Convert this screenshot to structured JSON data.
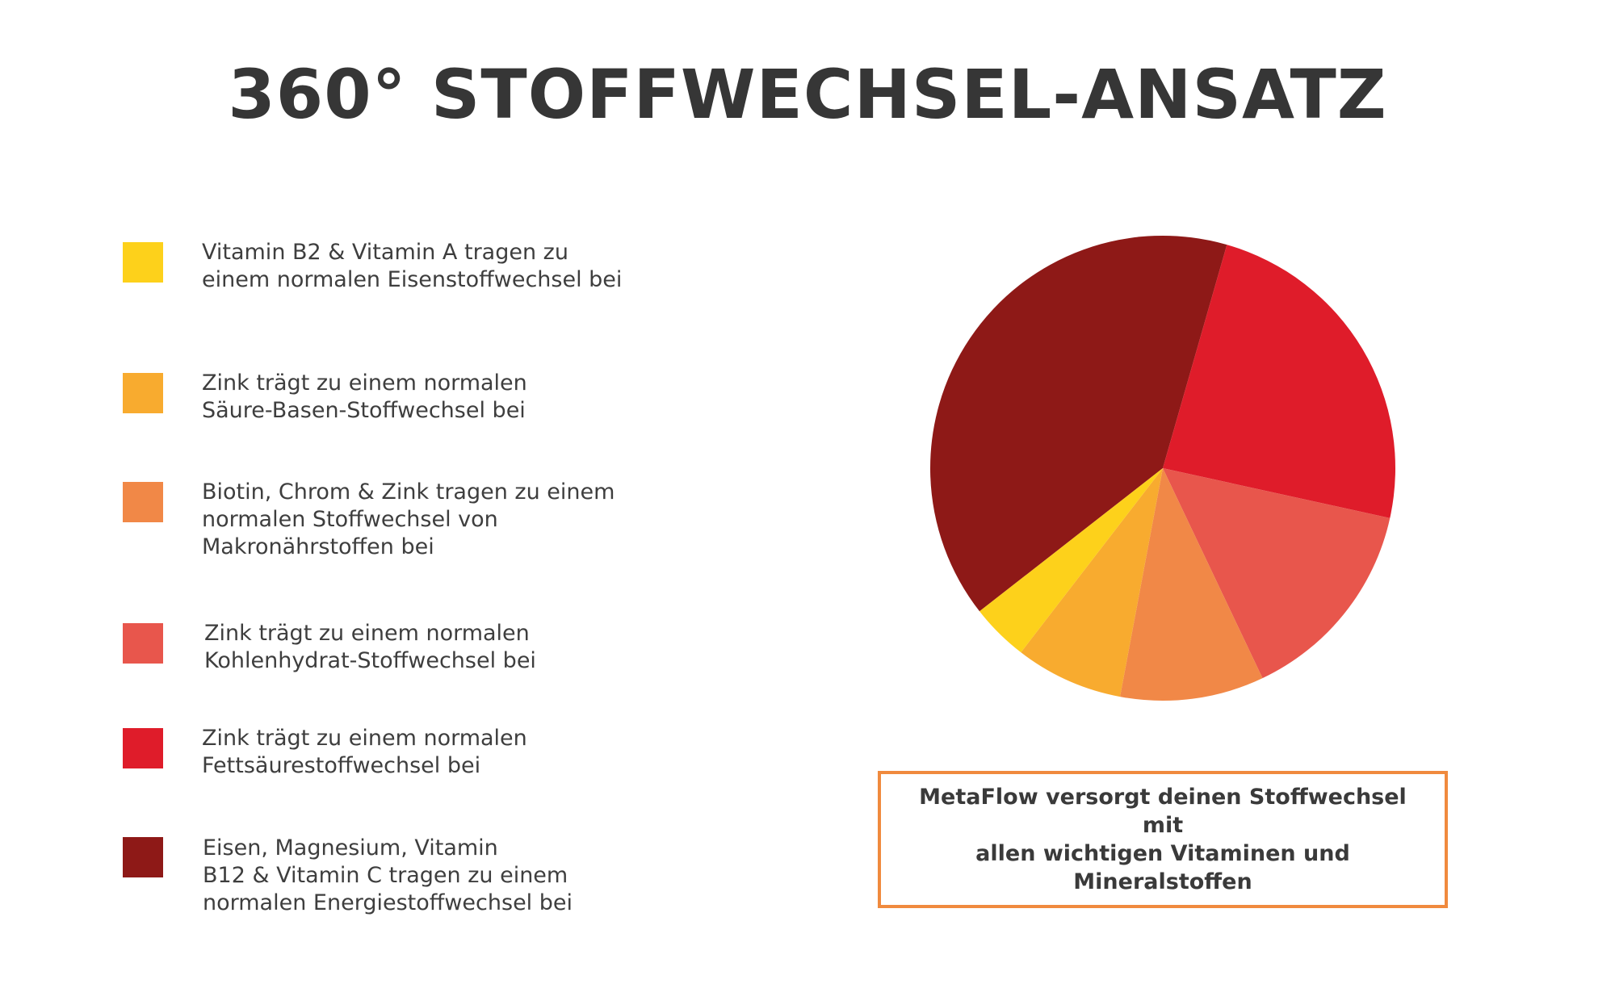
{
  "title": "360° STOFFWECHSEL-ANSATZ",
  "legend": [
    {
      "text": "Vitamin B2 & Vitamin A tragen zu\neinem normalen Eisenstoffwechsel bei",
      "color": "#fdd11b"
    },
    {
      "text": "Zink trägt zu einem normalen\nSäure-Basen-Stoffwechsel bei",
      "color": "#f8ab2f"
    },
    {
      "text": "Biotin, Chrom & Zink tragen zu einem\nnormalen Stoffwechsel von\nMakronährstoffen bei",
      "color": "#f18847"
    },
    {
      "text": "Zink trägt zu einem normalen\nKohlenhydrat-Stoffwechsel bei",
      "color": "#e8564c"
    },
    {
      "text": "Zink trägt zu einem normalen\nFettsäurestoffwechsel bei",
      "color": "#df1c2a"
    },
    {
      "text": "Eisen, Magnesium, Vitamin\nB12 & Vitamin C tragen zu einem\nnormalen Energiestoffwechsel bei",
      "color": "#8e1917"
    }
  ],
  "chart_data": {
    "type": "pie",
    "title": "360° STOFFWECHSEL-ANSATZ",
    "start_angle_deg": 232,
    "direction": "clockwise",
    "categories": [
      "Eisen, Magnesium, Vitamin B12 & Vitamin C – Energiestoffwechsel",
      "Zink – Fettsäurestoffwechsel",
      "Zink – Kohlenhydrat-Stoffwechsel",
      "Biotin, Chrom & Zink – Makronährstoffe",
      "Zink – Säure-Basen-Stoffwechsel",
      "Vitamin B2 & Vitamin A – Eisenstoffwechsel"
    ],
    "values": [
      40,
      24,
      14.5,
      10,
      7.5,
      4
    ],
    "colors": [
      "#8e1917",
      "#df1c2a",
      "#e8564c",
      "#f18847",
      "#f8ab2f",
      "#fdd11b"
    ]
  },
  "callout": {
    "text": "MetaFlow versorgt deinen Stoffwechsel mit\nallen wichtigen Vitaminen und Mineralstoffen"
  }
}
